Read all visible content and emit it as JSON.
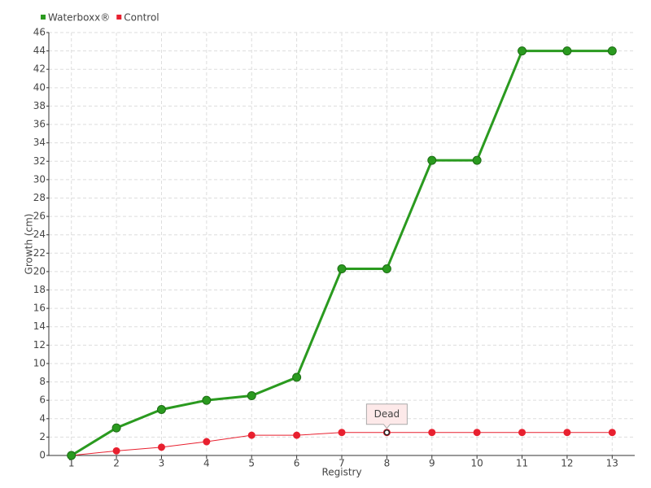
{
  "chart_data": {
    "type": "line",
    "categories": [
      "1",
      "2",
      "3",
      "4",
      "5",
      "6",
      "7",
      "8",
      "9",
      "10",
      "11",
      "12",
      "13"
    ],
    "x_label": "Registry",
    "y_label": "Growth (cm)",
    "series": [
      {
        "name": "Waterboxx®",
        "color": "#2a9a1f",
        "values": [
          0,
          3,
          5,
          6,
          6.5,
          8.5,
          20.3,
          20.3,
          32.1,
          32.1,
          44,
          44,
          44
        ]
      },
      {
        "name": "Control",
        "color": "#e8202f",
        "values": [
          0,
          0.5,
          0.9,
          1.5,
          2.2,
          2.2,
          2.5,
          2.5,
          2.5,
          2.5,
          2.5,
          2.5,
          2.5
        ]
      }
    ],
    "annotations": [
      {
        "text": "Dead",
        "series": 1,
        "index": 7
      }
    ],
    "ylim": [
      0,
      46
    ],
    "yticks": [
      0,
      2,
      4,
      6,
      8,
      10,
      12,
      14,
      16,
      18,
      20,
      22,
      24,
      26,
      28,
      30,
      32,
      34,
      36,
      38,
      40,
      42,
      44,
      46
    ],
    "grid": true,
    "legend": "top-left"
  }
}
